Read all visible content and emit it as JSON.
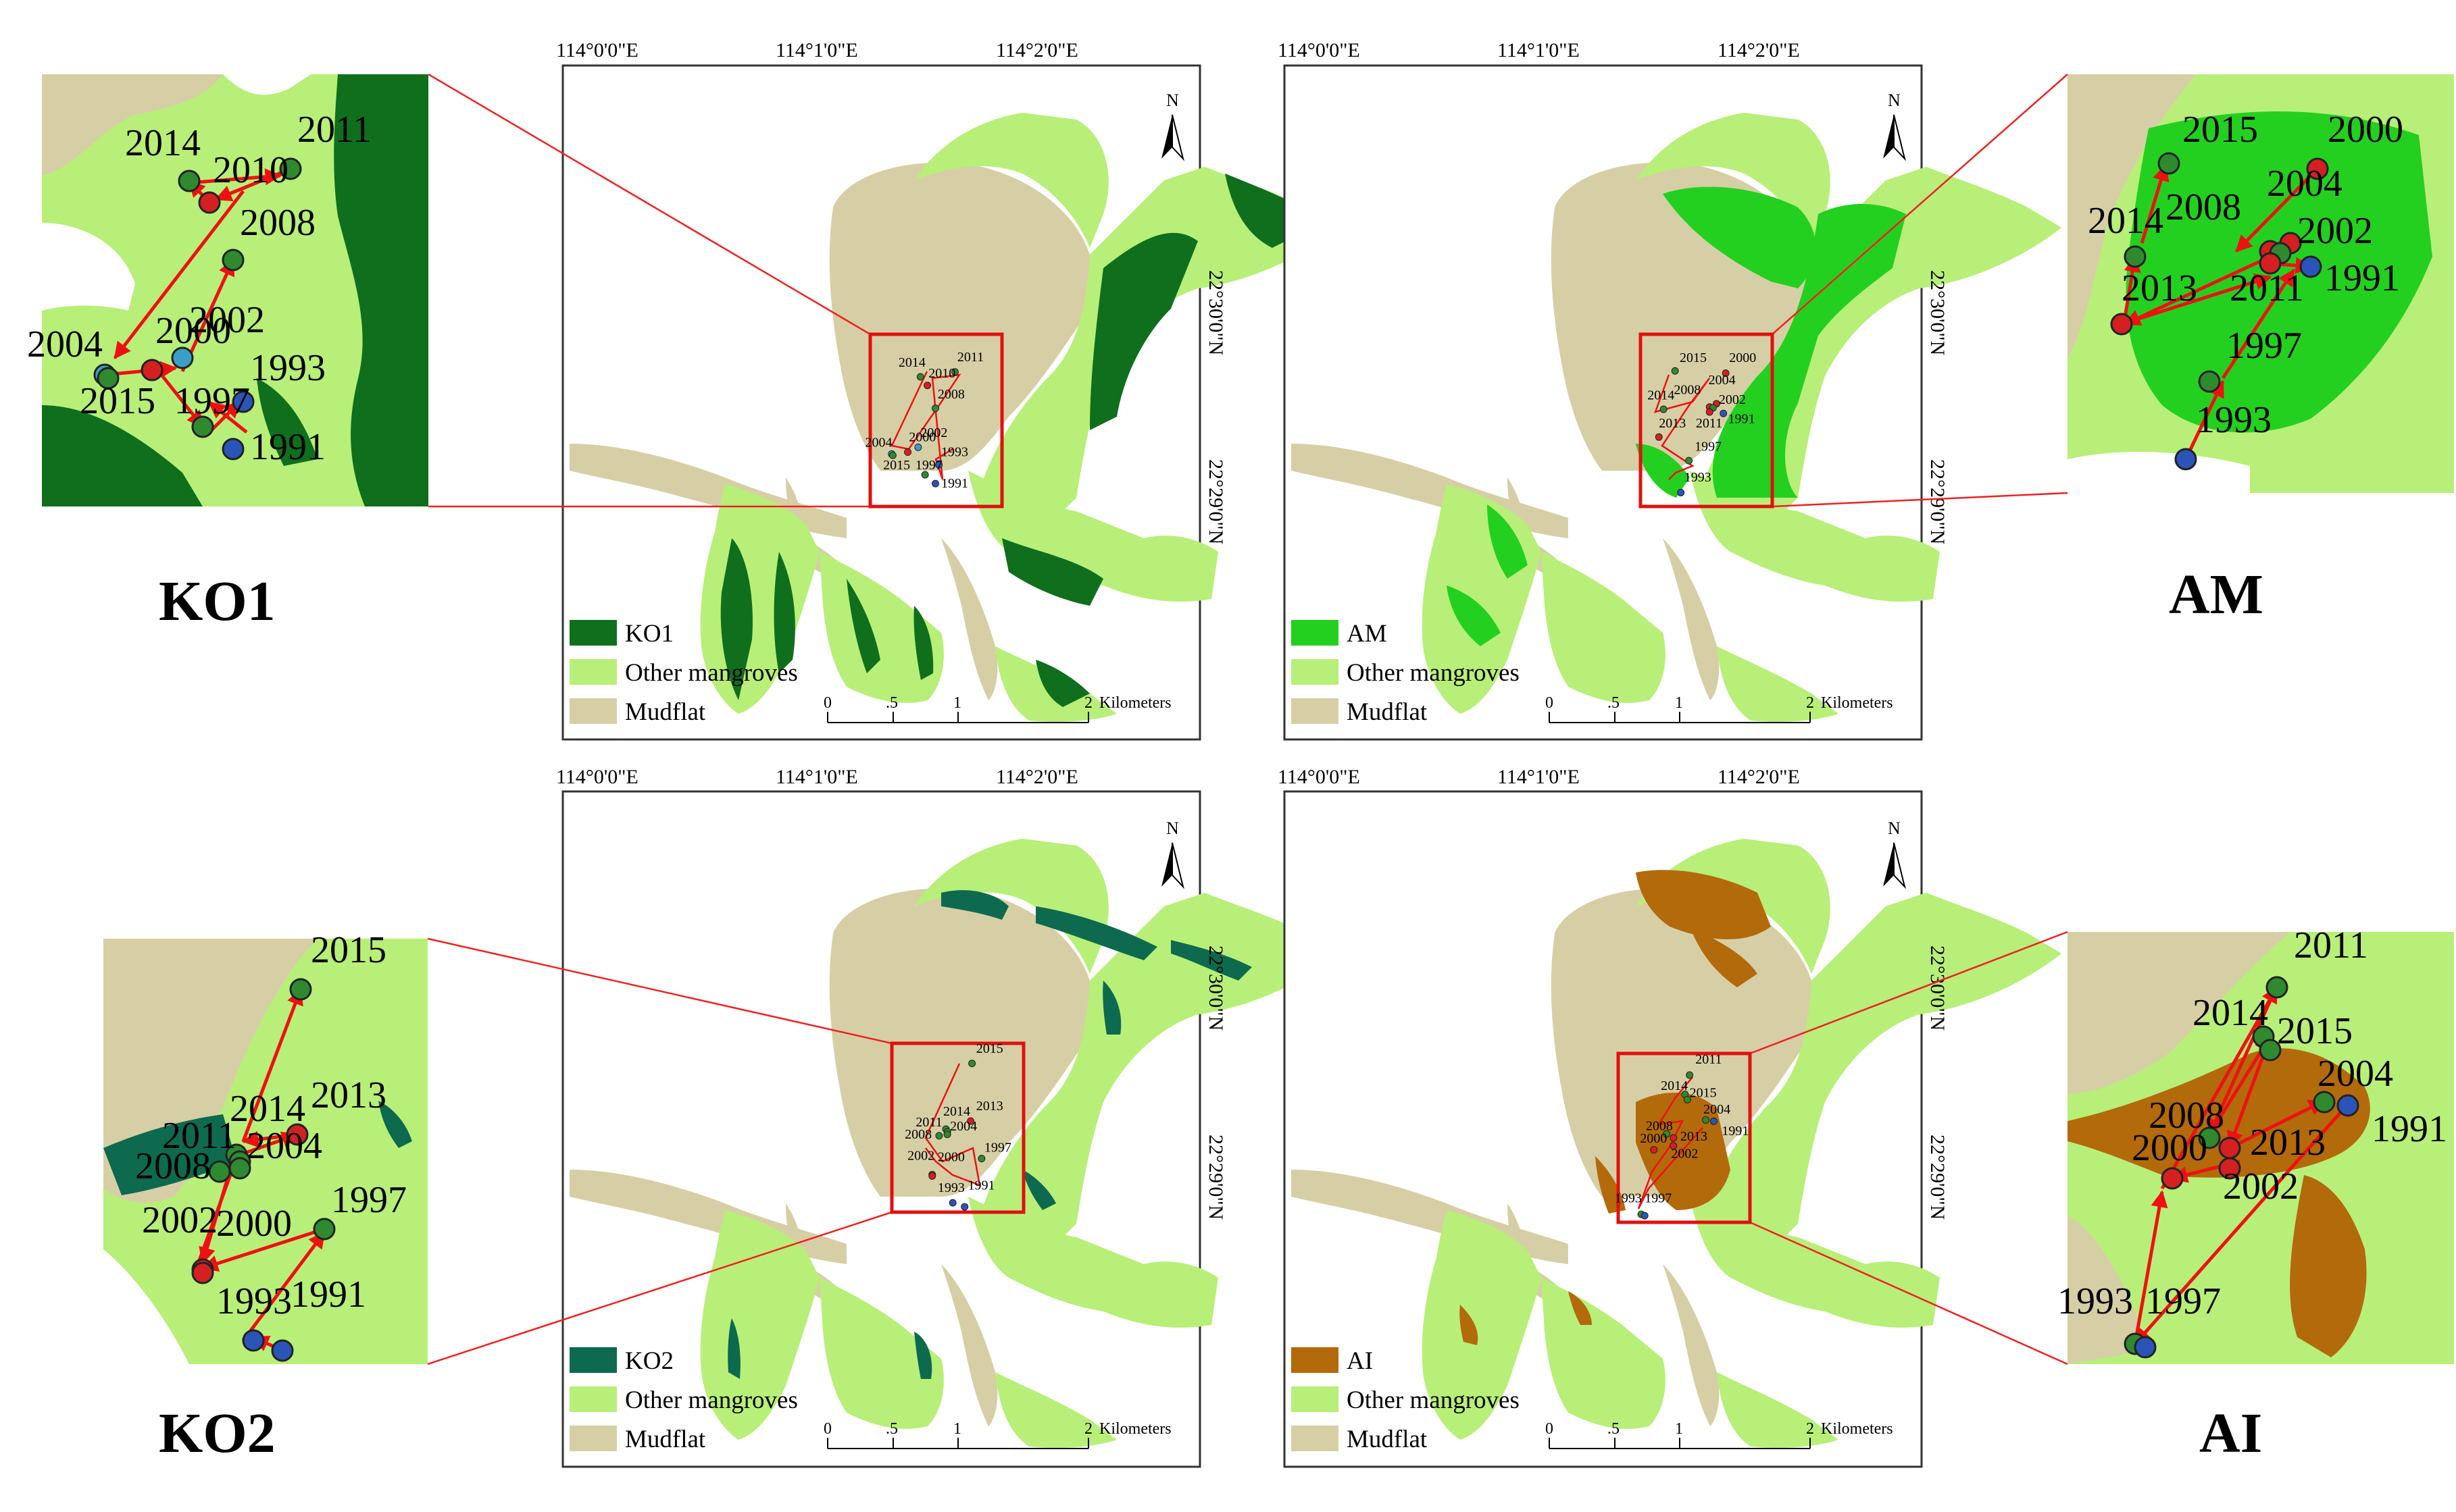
{
  "colors": {
    "mudflat": "#d6cfa6",
    "other_mangroves": "#b8ef78",
    "ko1": "#0f6f1c",
    "am": "#24d01f",
    "ko2": "#0d6a4e",
    "ai": "#b36a0a",
    "track": "#ee1111",
    "point_red": "#d42020",
    "point_green": "#2f8a2f",
    "point_blue": "#2a54b8",
    "point_cyan": "#3a9fc8"
  },
  "coordinates": {
    "lon": [
      "114°0'0\"E",
      "114°1'0\"E",
      "114°2'0\"E"
    ],
    "lat": [
      "22°30'0\"N",
      "22°29'0\"N"
    ]
  },
  "north_arrow": "N",
  "scale_bar": {
    "ticks": [
      "0",
      ".5",
      "1",
      "2"
    ],
    "unit": "Kilometers"
  },
  "panels": [
    {
      "id": "ko1",
      "label": "KO1",
      "legend": [
        "KO1",
        "Other mangroves",
        "Mudflat"
      ],
      "points": [
        {
          "year": "2014",
          "color": "green"
        },
        {
          "year": "2011",
          "color": "green"
        },
        {
          "year": "2010",
          "color": "red"
        },
        {
          "year": "2008",
          "color": "green"
        },
        {
          "year": "2004",
          "color": "cyan"
        },
        {
          "year": "2000",
          "color": "red"
        },
        {
          "year": "2002",
          "color": "cyan"
        },
        {
          "year": "1993",
          "color": "blue"
        },
        {
          "year": "2015",
          "color": "green"
        },
        {
          "year": "1997",
          "color": "green"
        },
        {
          "year": "1991",
          "color": "blue"
        }
      ]
    },
    {
      "id": "am",
      "label": "AM",
      "legend": [
        "AM",
        "Other mangroves",
        "Mudflat"
      ],
      "points": [
        {
          "year": "2015",
          "color": "green"
        },
        {
          "year": "2000",
          "color": "red"
        },
        {
          "year": "2014",
          "color": "green"
        },
        {
          "year": "2008",
          "color": "red"
        },
        {
          "year": "2004",
          "color": "red"
        },
        {
          "year": "2002",
          "color": "green"
        },
        {
          "year": "2013",
          "color": "red"
        },
        {
          "year": "2011",
          "color": "red"
        },
        {
          "year": "1991",
          "color": "blue"
        },
        {
          "year": "1997",
          "color": "green"
        },
        {
          "year": "1993",
          "color": "blue"
        }
      ]
    },
    {
      "id": "ko2",
      "label": "KO2",
      "legend": [
        "KO2",
        "Other mangroves",
        "Mudflat"
      ],
      "points": [
        {
          "year": "2015",
          "color": "green"
        },
        {
          "year": "2014",
          "color": "green"
        },
        {
          "year": "2013",
          "color": "red"
        },
        {
          "year": "2011",
          "color": "green"
        },
        {
          "year": "2004",
          "color": "green"
        },
        {
          "year": "2008",
          "color": "green"
        },
        {
          "year": "1997",
          "color": "green"
        },
        {
          "year": "2002",
          "color": "red"
        },
        {
          "year": "2000",
          "color": "red"
        },
        {
          "year": "1993",
          "color": "blue"
        },
        {
          "year": "1991",
          "color": "blue"
        }
      ]
    },
    {
      "id": "ai",
      "label": "AI",
      "legend": [
        "AI",
        "Other mangroves",
        "Mudflat"
      ],
      "points": [
        {
          "year": "2011",
          "color": "green"
        },
        {
          "year": "2014",
          "color": "green"
        },
        {
          "year": "2015",
          "color": "green"
        },
        {
          "year": "2004",
          "color": "green"
        },
        {
          "year": "2008",
          "color": "green"
        },
        {
          "year": "1991",
          "color": "blue"
        },
        {
          "year": "2013",
          "color": "red"
        },
        {
          "year": "2000",
          "color": "red"
        },
        {
          "year": "2002",
          "color": "red"
        },
        {
          "year": "1993",
          "color": "green"
        },
        {
          "year": "1997",
          "color": "blue"
        }
      ]
    }
  ]
}
